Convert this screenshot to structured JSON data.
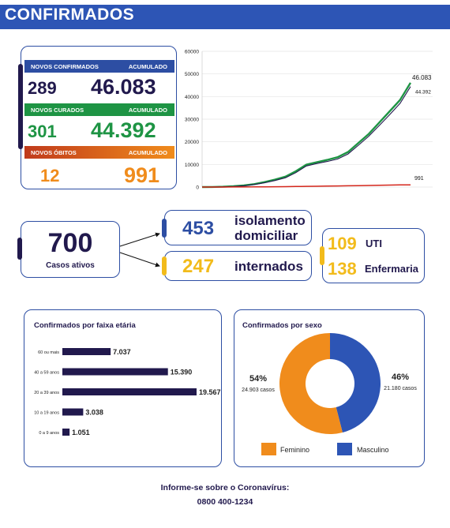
{
  "header": {
    "title": "CONFIRMADOS"
  },
  "summary": {
    "confirmed": {
      "label": "NOVOS CONFIRMADOS",
      "acc_label": "ACUMULADO",
      "new": "289",
      "total": "46.083"
    },
    "cured": {
      "label": "NOVOS CURADOS",
      "acc_label": "ACUMULADO",
      "new": "301",
      "total": "44.392"
    },
    "deaths": {
      "label": "NOVOS ÓBITOS",
      "acc_label": "ACUMULADO",
      "new": "12",
      "total": "991"
    }
  },
  "active": {
    "value": "700",
    "label": "Casos ativos",
    "home": {
      "value": "453",
      "label_line1": "isolamento",
      "label_line2": "domiciliar"
    },
    "hospital": {
      "value": "247",
      "label": "internados"
    },
    "icu": {
      "value": "109",
      "label": "UTI"
    },
    "ward": {
      "value": "138",
      "label": "Enfermaria"
    }
  },
  "colors": {
    "navy": "#21194d",
    "blue": "#2d55b5",
    "green": "#1e9444",
    "orange": "#f08c1c",
    "red": "#d4271c",
    "gold": "#f2bb1b",
    "darkred": "#c03a1c"
  },
  "chart_data": [
    {
      "type": "line",
      "title": "",
      "ylim": [
        0,
        60000
      ],
      "yticks": [
        0,
        10000,
        20000,
        30000,
        40000,
        50000,
        60000
      ],
      "series": [
        {
          "values": [
            0,
            30,
            150,
            350,
            700,
            1300,
            2200,
            3300,
            4600,
            7000,
            9900,
            11000,
            12000,
            13200,
            15500,
            19500,
            23500,
            28500,
            33500,
            38500,
            46083
          ],
          "end_label": "46.083"
        },
        {
          "values": [
            0,
            20,
            100,
            250,
            550,
            1100,
            1900,
            2900,
            4100,
            6400,
            9300,
            10400,
            11300,
            12400,
            14600,
            18500,
            22500,
            27200,
            32000,
            37000,
            44392
          ],
          "end_label": "44.392"
        },
        {
          "values": [
            0,
            5,
            15,
            30,
            50,
            80,
            110,
            150,
            190,
            240,
            300,
            360,
            420,
            480,
            550,
            620,
            700,
            780,
            860,
            930,
            991
          ],
          "end_label": "991"
        }
      ]
    },
    {
      "type": "bar",
      "title": "Confirmados por faixa etária",
      "categories": [
        "60 ou mais",
        "40 a 59 anos",
        "20 a 39 anos",
        "10 a 19 anos",
        "0 a 9 anos"
      ],
      "values": [
        7037,
        15390,
        19567,
        3038,
        1051
      ],
      "value_labels": [
        "7.037",
        "15.390",
        "19.567",
        "3.038",
        "1.051"
      ]
    },
    {
      "type": "pie",
      "title": "Confirmados por sexo",
      "categories": [
        "Feminino",
        "Masculino"
      ],
      "values": [
        54,
        46
      ],
      "percent_labels": [
        "54%",
        "46%"
      ],
      "count_labels": [
        "24.903 casos",
        "21.180 casos"
      ]
    }
  ],
  "footer": {
    "line1": "Informe-se sobre o Coronavírus:",
    "line2": "0800 400-1234"
  }
}
